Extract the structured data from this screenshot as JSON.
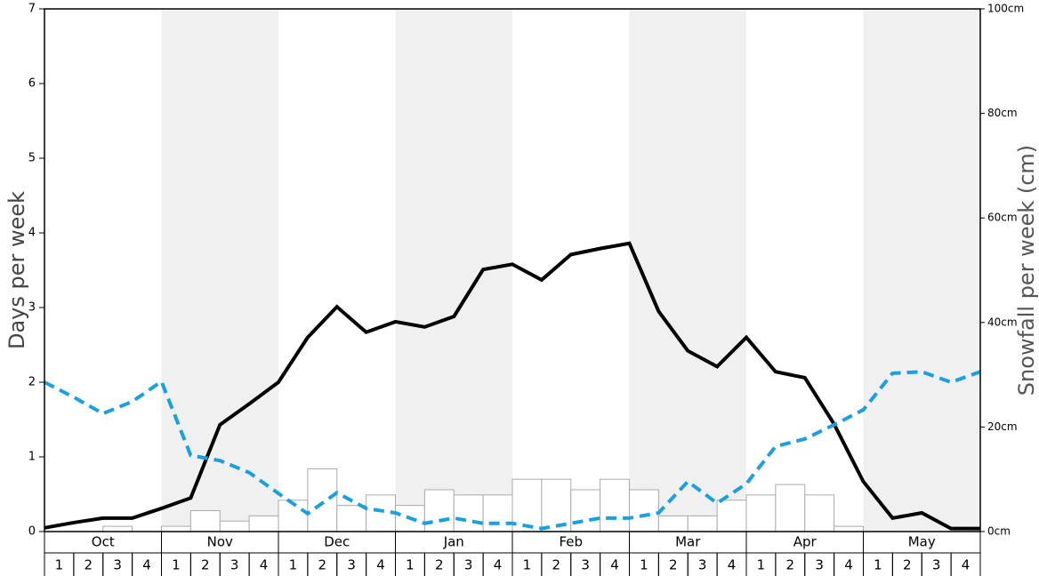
{
  "chart_data": {
    "type": "bar-line",
    "months": [
      "Oct",
      "Nov",
      "Dec",
      "Jan",
      "Feb",
      "Mar",
      "Apr",
      "May"
    ],
    "weeks": [
      "1",
      "2",
      "3",
      "4"
    ],
    "ylabel": "Days per week",
    "y2label": "Snowfall per week (cm)",
    "ylim": [
      0,
      7
    ],
    "yticks": [
      0,
      1,
      2,
      3,
      4,
      5,
      6,
      7
    ],
    "y2lim": [
      0,
      100
    ],
    "y2ticks": [
      {
        "value": 0,
        "label": "0cm"
      },
      {
        "value": 20,
        "label": "20cm"
      },
      {
        "value": 40,
        "label": "40cm"
      },
      {
        "value": 60,
        "label": "60cm"
      },
      {
        "value": 80,
        "label": "80cm"
      },
      {
        "value": 100,
        "label": "100cm"
      }
    ],
    "shade_color": "#f0f0f0",
    "series": [
      {
        "type": "bar",
        "axis": "y2",
        "color": "#ffffff",
        "edge_color": "#aaaaaa",
        "values": [
          0,
          0,
          1,
          0,
          1,
          4,
          2,
          3,
          6,
          12,
          5,
          7,
          5,
          8,
          7,
          7,
          10,
          10,
          8,
          10,
          8,
          3,
          3,
          6,
          7,
          9,
          7,
          1,
          0,
          0,
          0,
          0
        ]
      },
      {
        "type": "line",
        "color": "#000000",
        "dashed": false,
        "values": [
          0.05,
          0.12,
          0.18,
          0.18,
          0.31,
          0.45,
          1.43,
          1.71,
          2.0,
          2.6,
          3.01,
          2.67,
          2.81,
          2.74,
          2.88,
          3.51,
          3.58,
          3.37,
          3.71,
          3.79,
          3.86,
          2.95,
          2.42,
          2.21,
          2.6,
          2.14,
          2.06,
          1.44,
          0.67,
          0.18,
          0.25,
          0.04,
          0.04
        ]
      },
      {
        "type": "line",
        "color": "#1a9fe0",
        "dashed": true,
        "values": [
          2.0,
          1.8,
          1.58,
          1.74,
          2.01,
          1.02,
          0.95,
          0.79,
          0.51,
          0.24,
          0.52,
          0.31,
          0.25,
          0.11,
          0.18,
          0.11,
          0.11,
          0.04,
          0.11,
          0.18,
          0.18,
          0.25,
          0.67,
          0.38,
          0.64,
          1.14,
          1.24,
          1.43,
          1.63,
          2.12,
          2.14,
          2.0,
          2.14
        ]
      }
    ]
  }
}
